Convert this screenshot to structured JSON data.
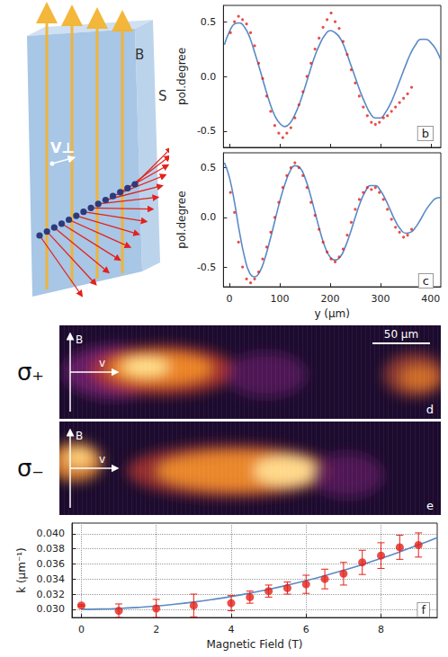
{
  "schematic": {
    "field": "B",
    "spin": "S",
    "velocity": "V⊥"
  },
  "chart_data": [
    {
      "panel": "b",
      "type": "line",
      "ylabel": "pol.degree",
      "xlim": [
        -12,
        420
      ],
      "xticks": [
        0,
        100,
        200,
        300,
        400
      ],
      "ylim": [
        -0.65,
        0.65
      ],
      "yticks": [
        -0.5,
        {
          "value": 0,
          "label": "0.0"
        },
        0.5
      ],
      "tick_labels": "y",
      "grid": false,
      "series": [
        {
          "type": "scatter",
          "color": "#e3221b",
          "marker": "circle",
          "x": [
            2,
            10,
            18,
            26,
            34,
            42,
            50,
            58,
            66,
            74,
            82,
            90,
            98,
            106,
            114,
            122,
            130,
            138,
            146,
            154,
            162,
            170,
            178,
            186,
            194,
            202,
            210,
            218,
            226,
            234,
            242,
            250,
            258,
            266,
            274,
            282,
            290,
            298,
            306,
            314,
            322,
            330,
            338,
            346,
            354,
            362
          ],
          "values": [
            0.4,
            0.5,
            0.55,
            0.52,
            0.48,
            0.4,
            0.28,
            0.12,
            -0.02,
            -0.18,
            -0.32,
            -0.45,
            -0.52,
            -0.56,
            -0.52,
            -0.47,
            -0.38,
            -0.26,
            -0.14,
            0,
            0.12,
            0.25,
            0.35,
            0.45,
            0.52,
            0.58,
            0.5,
            0.44,
            0.32,
            0.2,
            0.06,
            -0.06,
            -0.18,
            -0.28,
            -0.36,
            -0.42,
            -0.44,
            -0.42,
            -0.38,
            -0.36,
            -0.32,
            -0.28,
            -0.24,
            -0.2,
            -0.16,
            -0.1
          ]
        },
        {
          "type": "line",
          "color": "#5a8ac6",
          "line_style": "solid",
          "x": [
            -10,
            0,
            10,
            20,
            30,
            40,
            50,
            60,
            70,
            80,
            90,
            100,
            110,
            120,
            130,
            140,
            150,
            160,
            170,
            180,
            190,
            200,
            210,
            220,
            230,
            240,
            250,
            260,
            270,
            280,
            290,
            300,
            310,
            320,
            330,
            340,
            350,
            360,
            370,
            380,
            390,
            400,
            410,
            420
          ],
          "values": [
            0.29,
            0.41,
            0.48,
            0.49,
            0.45,
            0.36,
            0.22,
            0.07,
            -0.09,
            -0.24,
            -0.36,
            -0.43,
            -0.46,
            -0.43,
            -0.35,
            -0.24,
            -0.1,
            0.05,
            0.19,
            0.3,
            0.38,
            0.42,
            0.4,
            0.35,
            0.25,
            0.12,
            -0.01,
            -0.14,
            -0.25,
            -0.34,
            -0.38,
            -0.38,
            -0.33,
            -0.25,
            -0.14,
            -0.02,
            0.1,
            0.21,
            0.29,
            0.34,
            0.34,
            0.31,
            0.25,
            0.15
          ]
        }
      ]
    },
    {
      "panel": "c",
      "type": "line",
      "xlabel": "y (μm)",
      "ylabel": "pol.degree",
      "xlim": [
        -12,
        420
      ],
      "xticks": [
        0,
        100,
        200,
        300,
        400
      ],
      "ylim": [
        -0.7,
        0.65
      ],
      "yticks": [
        -0.5,
        {
          "value": 0,
          "label": "0.0"
        },
        0.5
      ],
      "grid": false,
      "series": [
        {
          "type": "scatter",
          "color": "#e3221b",
          "marker": "circle",
          "x": [
            2,
            10,
            18,
            26,
            34,
            42,
            50,
            58,
            66,
            74,
            82,
            90,
            98,
            106,
            114,
            122,
            130,
            138,
            146,
            154,
            162,
            170,
            178,
            186,
            194,
            202,
            210,
            218,
            226,
            234,
            242,
            250,
            258,
            266,
            274,
            282,
            290,
            298,
            306,
            314,
            322,
            330,
            338,
            346,
            354,
            362
          ],
          "values": [
            0.25,
            0.05,
            -0.25,
            -0.5,
            -0.62,
            -0.66,
            -0.62,
            -0.55,
            -0.42,
            -0.3,
            -0.15,
            0,
            0.15,
            0.3,
            0.42,
            0.5,
            0.55,
            0.5,
            0.42,
            0.3,
            0.15,
            0.02,
            -0.12,
            -0.25,
            -0.35,
            -0.42,
            -0.45,
            -0.4,
            -0.32,
            -0.18,
            -0.05,
            0.08,
            0.18,
            0.25,
            0.3,
            0.28,
            0.3,
            0.25,
            0.18,
            0.08,
            -0.02,
            -0.1,
            -0.15,
            -0.2,
            -0.18,
            -0.12
          ]
        },
        {
          "type": "line",
          "color": "#5a8ac6",
          "line_style": "solid",
          "x": [
            -10,
            0,
            10,
            20,
            30,
            40,
            50,
            60,
            70,
            80,
            90,
            100,
            110,
            120,
            130,
            140,
            150,
            160,
            170,
            180,
            190,
            200,
            210,
            220,
            230,
            240,
            250,
            260,
            270,
            280,
            290,
            300,
            310,
            320,
            330,
            340,
            350,
            360,
            370,
            380,
            390,
            400,
            410,
            420
          ],
          "values": [
            0.55,
            0.4,
            0.15,
            -0.15,
            -0.4,
            -0.56,
            -0.6,
            -0.55,
            -0.42,
            -0.24,
            -0.04,
            0.16,
            0.33,
            0.46,
            0.52,
            0.5,
            0.4,
            0.24,
            0.05,
            -0.14,
            -0.3,
            -0.4,
            -0.43,
            -0.4,
            -0.3,
            -0.16,
            0,
            0.15,
            0.26,
            0.32,
            0.32,
            0.27,
            0.18,
            0.07,
            -0.04,
            -0.12,
            -0.16,
            -0.15,
            -0.1,
            -0.02,
            0.07,
            0.14,
            0.19,
            0.2
          ]
        }
      ]
    },
    {
      "panel": "f",
      "type": "scatter",
      "xlabel": "Magnetic Field (T)",
      "ylabel": "k (μm⁻¹)",
      "xlim": [
        -0.25,
        9.5
      ],
      "xticks": [
        0,
        2,
        4,
        6,
        8
      ],
      "ylim": [
        0.0289,
        0.0414
      ],
      "yticks": [
        {
          "value": 0.03,
          "label": "0.030"
        },
        {
          "value": 0.032,
          "label": "0.032"
        },
        {
          "value": 0.034,
          "label": "0.034"
        },
        {
          "value": 0.036,
          "label": "0.036"
        },
        {
          "value": 0.038,
          "label": "0.038"
        },
        {
          "value": 0.04,
          "label": "0.040"
        }
      ],
      "grid": true,
      "series": [
        {
          "type": "scatter",
          "color": "#e3221b",
          "marker": "circle",
          "x": [
            0,
            1,
            2,
            3,
            4,
            4.5,
            5,
            5.5,
            6,
            6.5,
            7,
            7.5,
            8,
            8.5,
            9
          ],
          "values": [
            0.0305,
            0.0298,
            0.0301,
            0.0305,
            0.0308,
            0.0316,
            0.0324,
            0.0328,
            0.0333,
            0.034,
            0.0347,
            0.0362,
            0.0371,
            0.0382,
            0.0385
          ],
          "errors": [
            0.0001,
            0.0009,
            0.0012,
            0.0015,
            0.001,
            0.0008,
            0.0008,
            0.0008,
            0.0012,
            0.0013,
            0.0015,
            0.0016,
            0.0017,
            0.0016,
            0.0016
          ]
        },
        {
          "type": "line",
          "color": "#5a8ac6",
          "line_style": "solid",
          "x": [
            0,
            0.5,
            1,
            1.5,
            2,
            2.5,
            3,
            3.5,
            4,
            4.5,
            5,
            5.5,
            6,
            6.5,
            7,
            7.5,
            8,
            8.5,
            9,
            9.5
          ],
          "values": [
            0.03,
            0.03003,
            0.03011,
            0.03024,
            0.03042,
            0.03066,
            0.03095,
            0.03129,
            0.03168,
            0.03213,
            0.03263,
            0.03318,
            0.03378,
            0.03444,
            0.03515,
            0.03591,
            0.03672,
            0.03759,
            0.03851,
            0.03948
          ]
        }
      ]
    }
  ],
  "images": [
    {
      "panel": "d",
      "label": "σ₊",
      "field": "B",
      "velocity": "v",
      "scale_bar": "50 μm"
    },
    {
      "panel": "e",
      "label": "σ₋",
      "field": "B",
      "velocity": "v"
    }
  ]
}
